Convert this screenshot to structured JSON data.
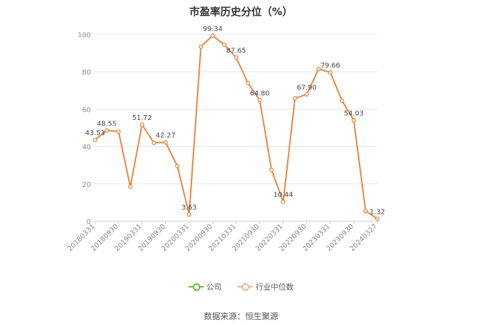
{
  "source_text": "数据来源：恒生聚源",
  "legend": [
    {
      "label": "公司",
      "color": "#66bb33"
    },
    {
      "label": "行业中位数",
      "color": "#f3b08d"
    }
  ],
  "chart_data": {
    "type": "line",
    "title": "市盈率历史分位（%）",
    "ylim": [
      0,
      100
    ],
    "yticks": [
      0,
      20,
      40,
      60,
      80,
      100
    ],
    "xtick_labels": [
      "20180331",
      "20180930",
      "20190331",
      "20190930",
      "20200331",
      "20200930",
      "20210331",
      "20210930",
      "20220331",
      "20220930",
      "20230331",
      "20230930",
      "20240327"
    ],
    "series": [
      {
        "color": "#e8843d",
        "values": [
          43.53,
          48.55,
          48.0,
          18.5,
          51.72,
          42.0,
          42.27,
          29.5,
          3.63,
          93.5,
          99.34,
          94.5,
          87.65,
          74.0,
          64.8,
          27.5,
          10.44,
          65.8,
          67.9,
          81.5,
          79.66,
          64.5,
          54.03,
          5.5,
          1.32
        ],
        "labels": [
          "43.53",
          "48.55",
          "",
          "",
          "51.72",
          "",
          "42.27",
          "",
          "3.63",
          "",
          "99.34",
          "",
          "87.65",
          "",
          "64.80",
          "",
          "10.44",
          "",
          "67.90",
          "",
          "79.66",
          "",
          "54.03",
          "",
          "1.32"
        ]
      }
    ],
    "grid": true,
    "legend_position": "bottom"
  }
}
